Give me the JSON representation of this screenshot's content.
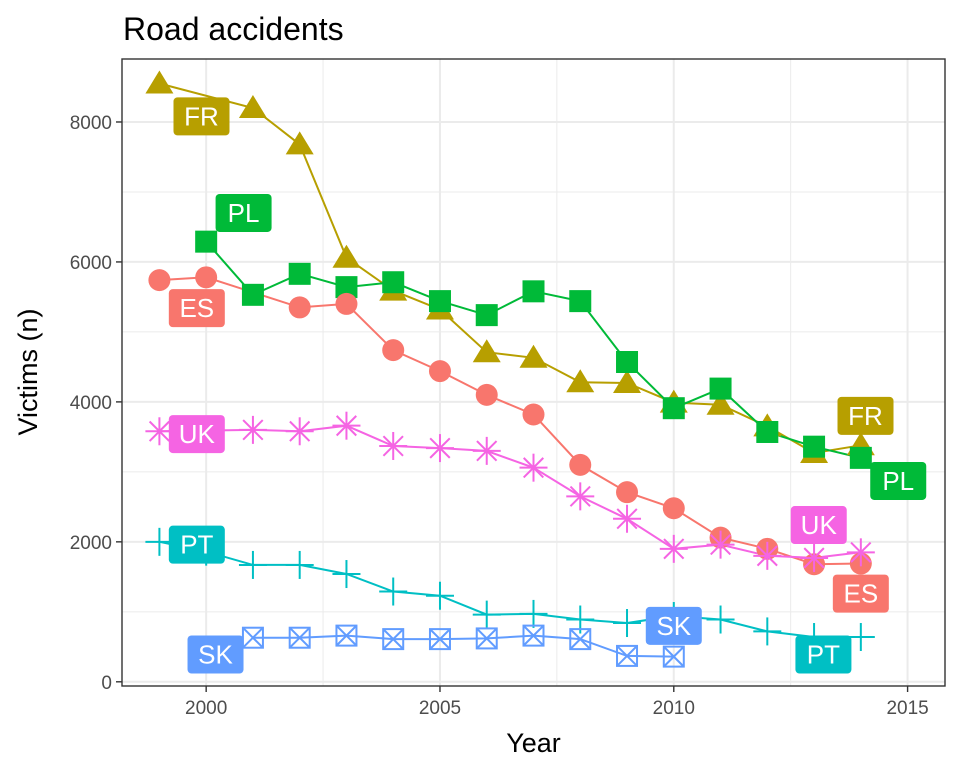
{
  "chart_data": {
    "type": "line",
    "title": "Road accidents",
    "xlabel": "Year",
    "ylabel": "Victims (n)",
    "xlim": [
      1998.2,
      2015.8
    ],
    "ylim": [
      -60,
      8900
    ],
    "xticks": [
      2000,
      2005,
      2010,
      2015
    ],
    "yticks": [
      0,
      2000,
      4000,
      6000,
      8000
    ],
    "grid": true,
    "legend": "none",
    "series": [
      {
        "name": "FR",
        "color": "#B79F00",
        "marker": "triangle",
        "x": [
          1999,
          2001,
          2002,
          2003,
          2004,
          2005,
          2006,
          2007,
          2008,
          2009,
          2010,
          2011,
          2012,
          2013,
          2014
        ],
        "y": [
          8550,
          8200,
          7680,
          6060,
          5590,
          5320,
          4710,
          4630,
          4280,
          4270,
          3990,
          3960,
          3650,
          3270,
          3380
        ]
      },
      {
        "name": "PL",
        "color": "#00BA38",
        "marker": "square",
        "x": [
          2000,
          2001,
          2002,
          2003,
          2004,
          2005,
          2006,
          2007,
          2008,
          2009,
          2010,
          2011,
          2012,
          2013,
          2014
        ],
        "y": [
          6290,
          5530,
          5830,
          5640,
          5710,
          5440,
          5240,
          5580,
          5440,
          4570,
          3910,
          4190,
          3570,
          3360,
          3200
        ]
      },
      {
        "name": "ES",
        "color": "#F8766D",
        "marker": "circle",
        "x": [
          1999,
          2000,
          2002,
          2003,
          2004,
          2005,
          2006,
          2007,
          2008,
          2009,
          2010,
          2011,
          2012,
          2013,
          2014
        ],
        "y": [
          5740,
          5780,
          5350,
          5400,
          4740,
          4440,
          4100,
          3820,
          3100,
          2710,
          2480,
          2060,
          1900,
          1680,
          1690
        ]
      },
      {
        "name": "UK",
        "color": "#F564E3",
        "marker": "asterisk",
        "x": [
          1999,
          2001,
          2002,
          2003,
          2004,
          2005,
          2006,
          2007,
          2008,
          2009,
          2010,
          2011,
          2012,
          2013,
          2014
        ],
        "y": [
          3580,
          3600,
          3580,
          3660,
          3370,
          3340,
          3300,
          3060,
          2650,
          2330,
          1900,
          1960,
          1800,
          1770,
          1850
        ]
      },
      {
        "name": "PT",
        "color": "#00BFC4",
        "marker": "plus",
        "x": [
          1999,
          2000,
          2001,
          2002,
          2003,
          2004,
          2005,
          2006,
          2007,
          2008,
          2009,
          2010,
          2011,
          2012,
          2013,
          2014
        ],
        "y": [
          2000,
          1860,
          1670,
          1670,
          1540,
          1290,
          1230,
          960,
          970,
          890,
          840,
          940,
          890,
          720,
          640,
          640
        ]
      },
      {
        "name": "SK",
        "color": "#619CFF",
        "marker": "boxcross",
        "x": [
          2001,
          2002,
          2003,
          2004,
          2005,
          2006,
          2007,
          2008,
          2009,
          2010
        ],
        "y": [
          630,
          630,
          660,
          610,
          610,
          620,
          660,
          610,
          370,
          360
        ]
      }
    ],
    "labels": [
      {
        "text": "FR",
        "series": "FR",
        "x": 1999.9,
        "y": 8080
      },
      {
        "text": "PL",
        "series": "PL",
        "x": 2000.8,
        "y": 6700
      },
      {
        "text": "ES",
        "series": "ES",
        "x": 1999.8,
        "y": 5340
      },
      {
        "text": "UK",
        "series": "UK",
        "x": 1999.8,
        "y": 3540
      },
      {
        "text": "PT",
        "series": "PT",
        "x": 1999.8,
        "y": 1960
      },
      {
        "text": "SK",
        "series": "SK",
        "x": 2000.2,
        "y": 390
      },
      {
        "text": "FR",
        "series": "FR",
        "x": 2014.1,
        "y": 3800
      },
      {
        "text": "PL",
        "series": "PL",
        "x": 2014.8,
        "y": 2870
      },
      {
        "text": "UK",
        "series": "UK",
        "x": 2013.1,
        "y": 2240
      },
      {
        "text": "ES",
        "series": "ES",
        "x": 2014.0,
        "y": 1260
      },
      {
        "text": "SK",
        "series": "SK",
        "x": 2010.0,
        "y": 800
      },
      {
        "text": "PT",
        "series": "PT",
        "x": 2013.2,
        "y": 390
      }
    ]
  }
}
